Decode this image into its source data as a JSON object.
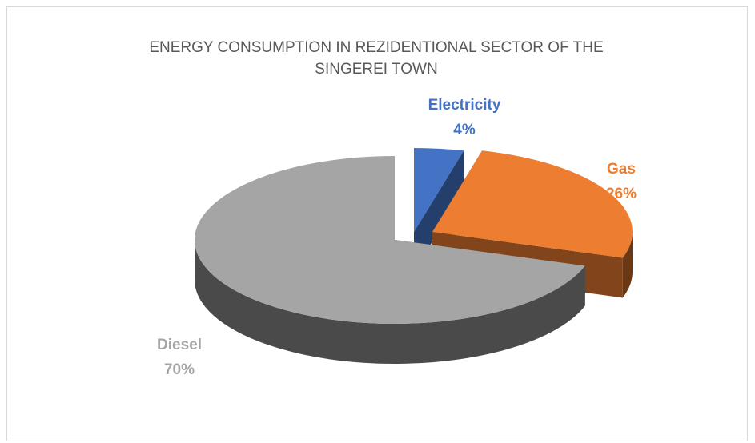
{
  "chart_data": {
    "type": "pie",
    "title": "ENERGY CONSUMPTION IN REZIDENTIONAL SECTOR OF THE SINGEREI TOWN",
    "categories": [
      "Electricity",
      "Gas",
      "Diesel"
    ],
    "values": [
      4,
      26,
      70
    ],
    "value_labels": [
      "4%",
      "26%",
      "70%"
    ],
    "colors": [
      "#4472c4",
      "#ed7d31",
      "#a5a5a5"
    ]
  }
}
